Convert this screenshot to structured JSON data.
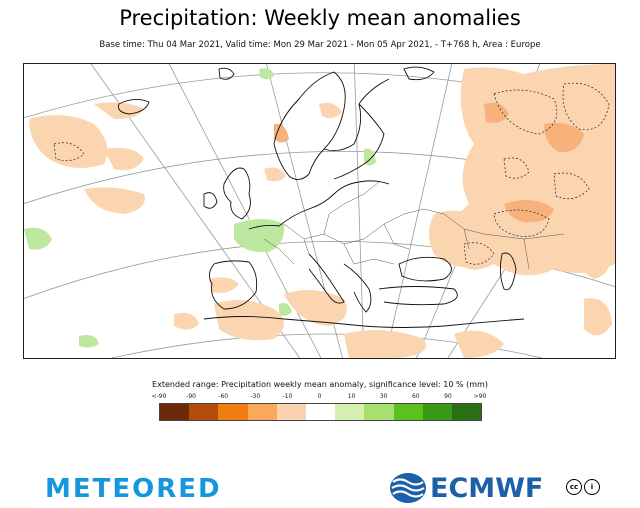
{
  "title": "Precipitation: Weekly mean anomalies",
  "subtitle": "Base time: Thu 04 Mar 2021, Valid time: Mon 29 Mar 2021 - Mon 05 Apr 2021, - T+768 h, Area : Europe",
  "legend": {
    "title": "Extended range: Precipitation weekly mean anomaly, significance level: 10 % (mm)",
    "ticks": [
      "<-90",
      "-90",
      "-60",
      "-30",
      "-10",
      "0",
      "10",
      "30",
      "60",
      "90",
      ">90"
    ],
    "colors": [
      "#6b2a08",
      "#b34d0a",
      "#f07d14",
      "#f8a95a",
      "#fcd3b0",
      "#ffffff",
      "#d6f0b0",
      "#a8e070",
      "#5cc020",
      "#3a9a18",
      "#2c6e14"
    ]
  },
  "anomaly_colors": {
    "dry": "#fbd5b0",
    "dry_strong": "#f6b27a",
    "wet": "#bde8a0"
  },
  "branding": {
    "meteored": "METEORED",
    "ecmwf": "ECMWF",
    "license_cc": "cc",
    "license_by": "i"
  }
}
